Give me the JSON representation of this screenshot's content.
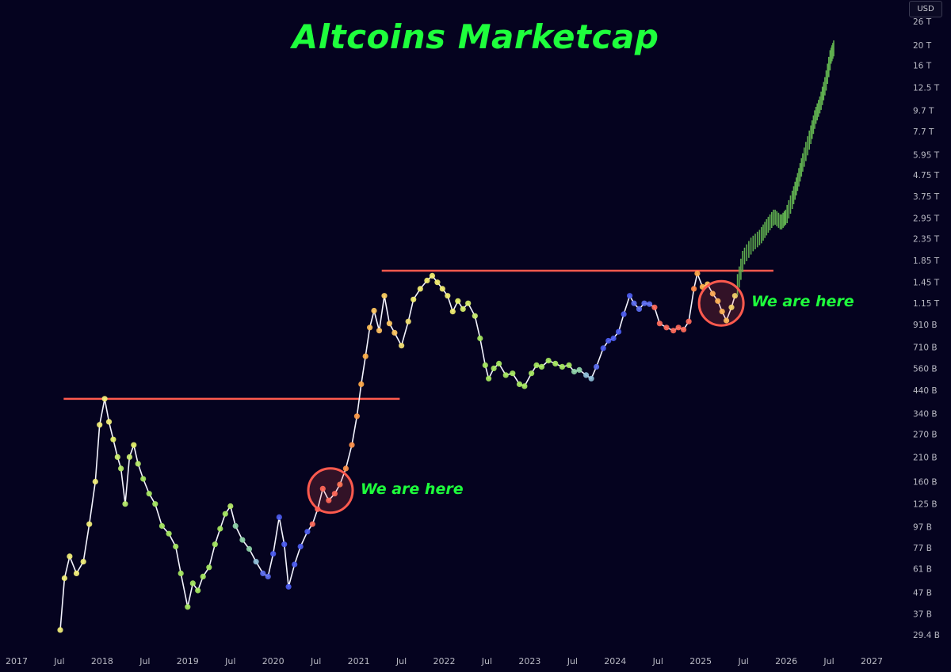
{
  "currency": "USD",
  "chart_data": {
    "type": "line",
    "title": "Altcoins Marketcap",
    "y_scale": "log",
    "y_axis_side": "right",
    "y_ticks": [
      {
        "label": "26 T",
        "value": 26000
      },
      {
        "label": "20 T",
        "value": 20000
      },
      {
        "label": "16 T",
        "value": 16000
      },
      {
        "label": "12.5 T",
        "value": 12500
      },
      {
        "label": "9.7 T",
        "value": 9700
      },
      {
        "label": "7.7 T",
        "value": 7700
      },
      {
        "label": "5.95 T",
        "value": 5950
      },
      {
        "label": "4.75 T",
        "value": 4750
      },
      {
        "label": "3.75 T",
        "value": 3750
      },
      {
        "label": "2.95 T",
        "value": 2950
      },
      {
        "label": "2.35 T",
        "value": 2350
      },
      {
        "label": "1.85 T",
        "value": 1850
      },
      {
        "label": "1.45 T",
        "value": 1450
      },
      {
        "label": "1.15 T",
        "value": 1150
      },
      {
        "label": "910 B",
        "value": 910
      },
      {
        "label": "710 B",
        "value": 710
      },
      {
        "label": "560 B",
        "value": 560
      },
      {
        "label": "440 B",
        "value": 440
      },
      {
        "label": "340 B",
        "value": 340
      },
      {
        "label": "270 B",
        "value": 270
      },
      {
        "label": "210 B",
        "value": 210
      },
      {
        "label": "160 B",
        "value": 160
      },
      {
        "label": "125 B",
        "value": 125
      },
      {
        "label": "97 B",
        "value": 97
      },
      {
        "label": "77 B",
        "value": 77
      },
      {
        "label": "61 B",
        "value": 61
      },
      {
        "label": "47 B",
        "value": 47
      },
      {
        "label": "37 B",
        "value": 37
      },
      {
        "label": "29.4 B",
        "value": 29.4
      }
    ],
    "x_ticks": [
      {
        "label": "2017",
        "value": 2017.0
      },
      {
        "label": "Jul",
        "value": 2017.5
      },
      {
        "label": "2018",
        "value": 2018.0
      },
      {
        "label": "Jul",
        "value": 2018.5
      },
      {
        "label": "2019",
        "value": 2019.0
      },
      {
        "label": "Jul",
        "value": 2019.5
      },
      {
        "label": "2020",
        "value": 2020.0
      },
      {
        "label": "Jul",
        "value": 2020.5
      },
      {
        "label": "2021",
        "value": 2021.0
      },
      {
        "label": "Jul",
        "value": 2021.5
      },
      {
        "label": "2022",
        "value": 2022.0
      },
      {
        "label": "Jul",
        "value": 2022.5
      },
      {
        "label": "2023",
        "value": 2023.0
      },
      {
        "label": "Jul",
        "value": 2023.5
      },
      {
        "label": "2024",
        "value": 2024.0
      },
      {
        "label": "Jul",
        "value": 2024.5
      },
      {
        "label": "2025",
        "value": 2025.0
      },
      {
        "label": "Jul",
        "value": 2025.5
      },
      {
        "label": "2026",
        "value": 2026.0
      },
      {
        "label": "Jul",
        "value": 2026.5
      },
      {
        "label": "2027",
        "value": 2027.0
      }
    ],
    "series": [
      {
        "points": [
          [
            2017.51,
            31,
            "#f3f07a"
          ],
          [
            2017.56,
            55,
            "#f3f07a"
          ],
          [
            2017.62,
            70,
            "#f3f07a"
          ],
          [
            2017.7,
            58,
            "#f3f07a"
          ],
          [
            2017.78,
            66,
            "#f3f07a"
          ],
          [
            2017.85,
            100,
            "#f3f07a"
          ],
          [
            2017.92,
            160,
            "#f3f07a"
          ],
          [
            2017.97,
            300,
            "#f3f07a"
          ],
          [
            2018.03,
            400,
            "#f3f07a"
          ],
          [
            2018.08,
            310,
            "#f3f07a"
          ],
          [
            2018.13,
            255,
            "#e6f26a"
          ],
          [
            2018.18,
            210,
            "#cdf070"
          ],
          [
            2018.22,
            185,
            "#b8ec6a"
          ],
          [
            2018.27,
            125,
            "#b8ec6a"
          ],
          [
            2018.32,
            210,
            "#cdf070"
          ],
          [
            2018.37,
            240,
            "#e6f26a"
          ],
          [
            2018.42,
            195,
            "#b8ec6a"
          ],
          [
            2018.48,
            165,
            "#a6e860"
          ],
          [
            2018.55,
            140,
            "#a6e860"
          ],
          [
            2018.62,
            125,
            "#a6e860"
          ],
          [
            2018.7,
            98,
            "#a6e860"
          ],
          [
            2018.78,
            90,
            "#a6e860"
          ],
          [
            2018.86,
            78,
            "#a6e860"
          ],
          [
            2018.92,
            58,
            "#a6e860"
          ],
          [
            2019.0,
            40,
            "#a6e860"
          ],
          [
            2019.06,
            52,
            "#a6e860"
          ],
          [
            2019.12,
            48,
            "#a6e860"
          ],
          [
            2019.18,
            56,
            "#a6e860"
          ],
          [
            2019.25,
            62,
            "#a6e860"
          ],
          [
            2019.32,
            80,
            "#a6e860"
          ],
          [
            2019.38,
            95,
            "#a6e860"
          ],
          [
            2019.44,
            112,
            "#a6e860"
          ],
          [
            2019.5,
            122,
            "#b8ec6a"
          ],
          [
            2019.56,
            98,
            "#8fd4a8"
          ],
          [
            2019.64,
            84,
            "#8fd4a8"
          ],
          [
            2019.72,
            76,
            "#8fd4a8"
          ],
          [
            2019.8,
            66,
            "#8fbfd8"
          ],
          [
            2019.88,
            58,
            "#5b6cf0"
          ],
          [
            2019.94,
            56,
            "#5b6cf0"
          ],
          [
            2020.0,
            72,
            "#4c5cf0"
          ],
          [
            2020.07,
            108,
            "#4c5cf0"
          ],
          [
            2020.13,
            80,
            "#4c5cf0"
          ],
          [
            2020.18,
            50,
            "#4c5cf0"
          ],
          [
            2020.25,
            64,
            "#4c5cf0"
          ],
          [
            2020.32,
            78,
            "#4c5cf0"
          ],
          [
            2020.4,
            92,
            "#4c5cf0"
          ],
          [
            2020.46,
            100,
            "#ff6a5a"
          ],
          [
            2020.52,
            118,
            "#ff6a5a"
          ],
          [
            2020.58,
            148,
            "#ff6a5a"
          ],
          [
            2020.65,
            130,
            "#ff6a5a"
          ],
          [
            2020.72,
            140,
            "#ff6a5a"
          ],
          [
            2020.78,
            155,
            "#ff7a55"
          ],
          [
            2020.85,
            185,
            "#ff9048"
          ],
          [
            2020.92,
            240,
            "#ff9048"
          ],
          [
            2020.98,
            330,
            "#ff9a48"
          ],
          [
            2021.03,
            470,
            "#ffa848"
          ],
          [
            2021.08,
            640,
            "#ffb048"
          ],
          [
            2021.13,
            880,
            "#ffc058"
          ],
          [
            2021.18,
            1060,
            "#ffc860"
          ],
          [
            2021.24,
            850,
            "#ffc060"
          ],
          [
            2021.3,
            1250,
            "#ffd060"
          ],
          [
            2021.36,
            920,
            "#ffc860"
          ],
          [
            2021.42,
            830,
            "#ffc860"
          ],
          [
            2021.5,
            720,
            "#f3e070"
          ],
          [
            2021.58,
            940,
            "#f3e070"
          ],
          [
            2021.64,
            1200,
            "#f3ef70"
          ],
          [
            2021.72,
            1350,
            "#f3ef70"
          ],
          [
            2021.8,
            1480,
            "#f3ef70"
          ],
          [
            2021.86,
            1560,
            "#f3ef70"
          ],
          [
            2021.92,
            1450,
            "#f3ef70"
          ],
          [
            2021.98,
            1350,
            "#f3ef70"
          ],
          [
            2022.04,
            1250,
            "#f3ef70"
          ],
          [
            2022.1,
            1050,
            "#f3ef70"
          ],
          [
            2022.16,
            1180,
            "#e6f26a"
          ],
          [
            2022.22,
            1080,
            "#d8f06a"
          ],
          [
            2022.28,
            1150,
            "#d8f06a"
          ],
          [
            2022.36,
            1000,
            "#cdf070"
          ],
          [
            2022.42,
            780,
            "#a6e860"
          ],
          [
            2022.48,
            580,
            "#a6e860"
          ],
          [
            2022.52,
            500,
            "#a6e860"
          ],
          [
            2022.58,
            560,
            "#a6e860"
          ],
          [
            2022.64,
            590,
            "#a6e860"
          ],
          [
            2022.72,
            520,
            "#a6e860"
          ],
          [
            2022.8,
            530,
            "#a6e860"
          ],
          [
            2022.88,
            470,
            "#a6e860"
          ],
          [
            2022.94,
            460,
            "#a6e860"
          ],
          [
            2023.02,
            530,
            "#a6e860"
          ],
          [
            2023.08,
            580,
            "#a6e860"
          ],
          [
            2023.14,
            570,
            "#a6e860"
          ],
          [
            2023.22,
            610,
            "#a6e860"
          ],
          [
            2023.3,
            590,
            "#a6e860"
          ],
          [
            2023.38,
            570,
            "#a6e860"
          ],
          [
            2023.46,
            580,
            "#a6e860"
          ],
          [
            2023.52,
            540,
            "#8fd4a8"
          ],
          [
            2023.58,
            550,
            "#8fd4a8"
          ],
          [
            2023.66,
            520,
            "#8fbfd8"
          ],
          [
            2023.72,
            500,
            "#8fbfd8"
          ],
          [
            2023.78,
            570,
            "#5b6cf0"
          ],
          [
            2023.86,
            700,
            "#4c5cf0"
          ],
          [
            2023.92,
            760,
            "#4c5cf0"
          ],
          [
            2023.98,
            780,
            "#4c5cf0"
          ],
          [
            2024.04,
            840,
            "#4c5cf0"
          ],
          [
            2024.1,
            1020,
            "#4c5cf0"
          ],
          [
            2024.17,
            1250,
            "#4c5cf0"
          ],
          [
            2024.22,
            1150,
            "#5b6cf0"
          ],
          [
            2024.28,
            1080,
            "#5b6cf0"
          ],
          [
            2024.34,
            1150,
            "#5b6cf0"
          ],
          [
            2024.4,
            1140,
            "#5b6cf0"
          ],
          [
            2024.46,
            1100,
            "#ff6a5a"
          ],
          [
            2024.52,
            920,
            "#ff6a5a"
          ],
          [
            2024.6,
            880,
            "#ff6a5a"
          ],
          [
            2024.68,
            850,
            "#ff6a5a"
          ],
          [
            2024.74,
            880,
            "#ff6a5a"
          ],
          [
            2024.8,
            860,
            "#ff6a5a"
          ],
          [
            2024.86,
            940,
            "#ff6a5a"
          ],
          [
            2024.92,
            1350,
            "#ff8a48"
          ],
          [
            2024.96,
            1600,
            "#ffa848"
          ],
          [
            2025.02,
            1380,
            "#ffb048"
          ],
          [
            2025.08,
            1420,
            "#ffc058"
          ],
          [
            2025.14,
            1280,
            "#ffc058"
          ],
          [
            2025.2,
            1180,
            "#ffc858"
          ],
          [
            2025.25,
            1050,
            "#ffc858"
          ],
          [
            2025.3,
            950,
            "#ffd060"
          ],
          [
            2025.36,
            1100,
            "#f3ef70"
          ],
          [
            2025.4,
            1250,
            "#f3ef70"
          ]
        ]
      },
      {
        "points": [
          [
            2025.42,
            1350
          ],
          [
            2025.5,
            1900
          ],
          [
            2025.6,
            2200
          ],
          [
            2025.7,
            2400
          ],
          [
            2025.78,
            2700
          ],
          [
            2025.86,
            3000
          ],
          [
            2025.94,
            2800
          ],
          [
            2026.0,
            3000
          ],
          [
            2026.08,
            3700
          ],
          [
            2026.14,
            4500
          ],
          [
            2026.2,
            5600
          ],
          [
            2026.28,
            7200
          ],
          [
            2026.34,
            9000
          ],
          [
            2026.4,
            10500
          ],
          [
            2026.46,
            13000
          ],
          [
            2026.52,
            17500
          ],
          [
            2026.56,
            19500
          ]
        ]
      }
    ],
    "resistance_lines": [
      {
        "x_start": 2017.55,
        "x_end": 2021.48,
        "value": 400
      },
      {
        "x_start": 2021.27,
        "x_end": 2025.85,
        "value": 1650
      }
    ],
    "annotations": [
      {
        "text": "We are here",
        "x": 2020.67,
        "value": 145
      },
      {
        "text": "We are here",
        "x": 2025.24,
        "value": 1150
      }
    ]
  }
}
